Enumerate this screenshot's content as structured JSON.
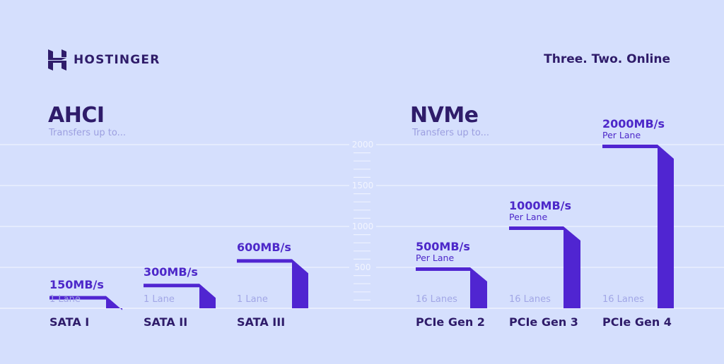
{
  "brand": {
    "name": "HOSTINGER",
    "tagline": "Three. Two. Online"
  },
  "sections": [
    {
      "title": "AHCI",
      "subtitle": "Transfers up to..."
    },
    {
      "title": "NVMe",
      "subtitle": "Transfers up to..."
    }
  ],
  "colors": {
    "background": "#d5dffd",
    "bar": "#5025d1",
    "text": "#2f1c6a",
    "grid": "#eef2ff"
  },
  "chart_data": {
    "type": "bar",
    "ylim": [
      0,
      2000
    ],
    "yticks": [
      500,
      1000,
      1500,
      2000
    ],
    "grid": true,
    "categories": [
      "SATA I",
      "SATA II",
      "SATA III",
      "PCIe Gen 2",
      "PCIe Gen 3",
      "PCIe Gen 4"
    ],
    "values": [
      150,
      300,
      600,
      500,
      1000,
      2000
    ],
    "value_labels": [
      "150MB/s",
      "300MB/s",
      "600MB/s",
      "500MB/s",
      "1000MB/s",
      "2000MB/s"
    ],
    "per_labels": [
      "",
      "",
      "",
      "Per Lane",
      "Per Lane",
      "Per Lane"
    ],
    "lane_labels": [
      "1 Lane",
      "1 Lane",
      "1 Lane",
      "16 Lanes",
      "16 Lanes",
      "16 Lanes"
    ]
  }
}
